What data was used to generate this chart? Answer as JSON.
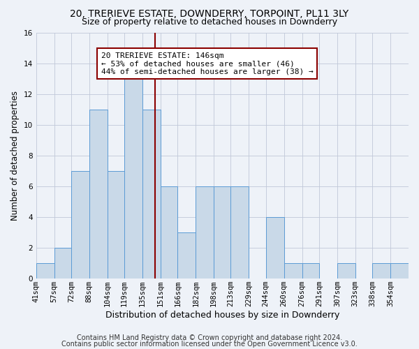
{
  "title": "20, TRERIEVE ESTATE, DOWNDERRY, TORPOINT, PL11 3LY",
  "subtitle": "Size of property relative to detached houses in Downderry",
  "xlabel": "Distribution of detached houses by size in Downderry",
  "ylabel": "Number of detached properties",
  "bin_labels": [
    "41sqm",
    "57sqm",
    "72sqm",
    "88sqm",
    "104sqm",
    "119sqm",
    "135sqm",
    "151sqm",
    "166sqm",
    "182sqm",
    "198sqm",
    "213sqm",
    "229sqm",
    "244sqm",
    "260sqm",
    "276sqm",
    "291sqm",
    "307sqm",
    "323sqm",
    "338sqm",
    "354sqm"
  ],
  "bin_edges": [
    41,
    57,
    72,
    88,
    104,
    119,
    135,
    151,
    166,
    182,
    198,
    213,
    229,
    244,
    260,
    276,
    291,
    307,
    323,
    338,
    354,
    370
  ],
  "counts": [
    1,
    2,
    7,
    11,
    7,
    13,
    11,
    6,
    3,
    6,
    6,
    6,
    0,
    4,
    1,
    1,
    0,
    1,
    0,
    1,
    1
  ],
  "bar_color": "#c9d9e8",
  "bar_edge_color": "#5b9bd5",
  "vline_x": 146,
  "vline_color": "#8b0000",
  "annotation_line1": "20 TRERIEVE ESTATE: 146sqm",
  "annotation_line2": "← 53% of detached houses are smaller (46)",
  "annotation_line3": "44% of semi-detached houses are larger (38) →",
  "annotation_box_color": "white",
  "annotation_box_edge": "#8b0000",
  "ylim": [
    0,
    16
  ],
  "yticks": [
    0,
    2,
    4,
    6,
    8,
    10,
    12,
    14,
    16
  ],
  "grid_color": "#c0c8d8",
  "footer1": "Contains HM Land Registry data © Crown copyright and database right 2024.",
  "footer2": "Contains public sector information licensed under the Open Government Licence v3.0.",
  "title_fontsize": 10,
  "subtitle_fontsize": 9,
  "xlabel_fontsize": 9,
  "ylabel_fontsize": 8.5,
  "tick_fontsize": 7.5,
  "annot_fontsize": 8,
  "footer_fontsize": 7,
  "bg_color": "#eef2f8"
}
